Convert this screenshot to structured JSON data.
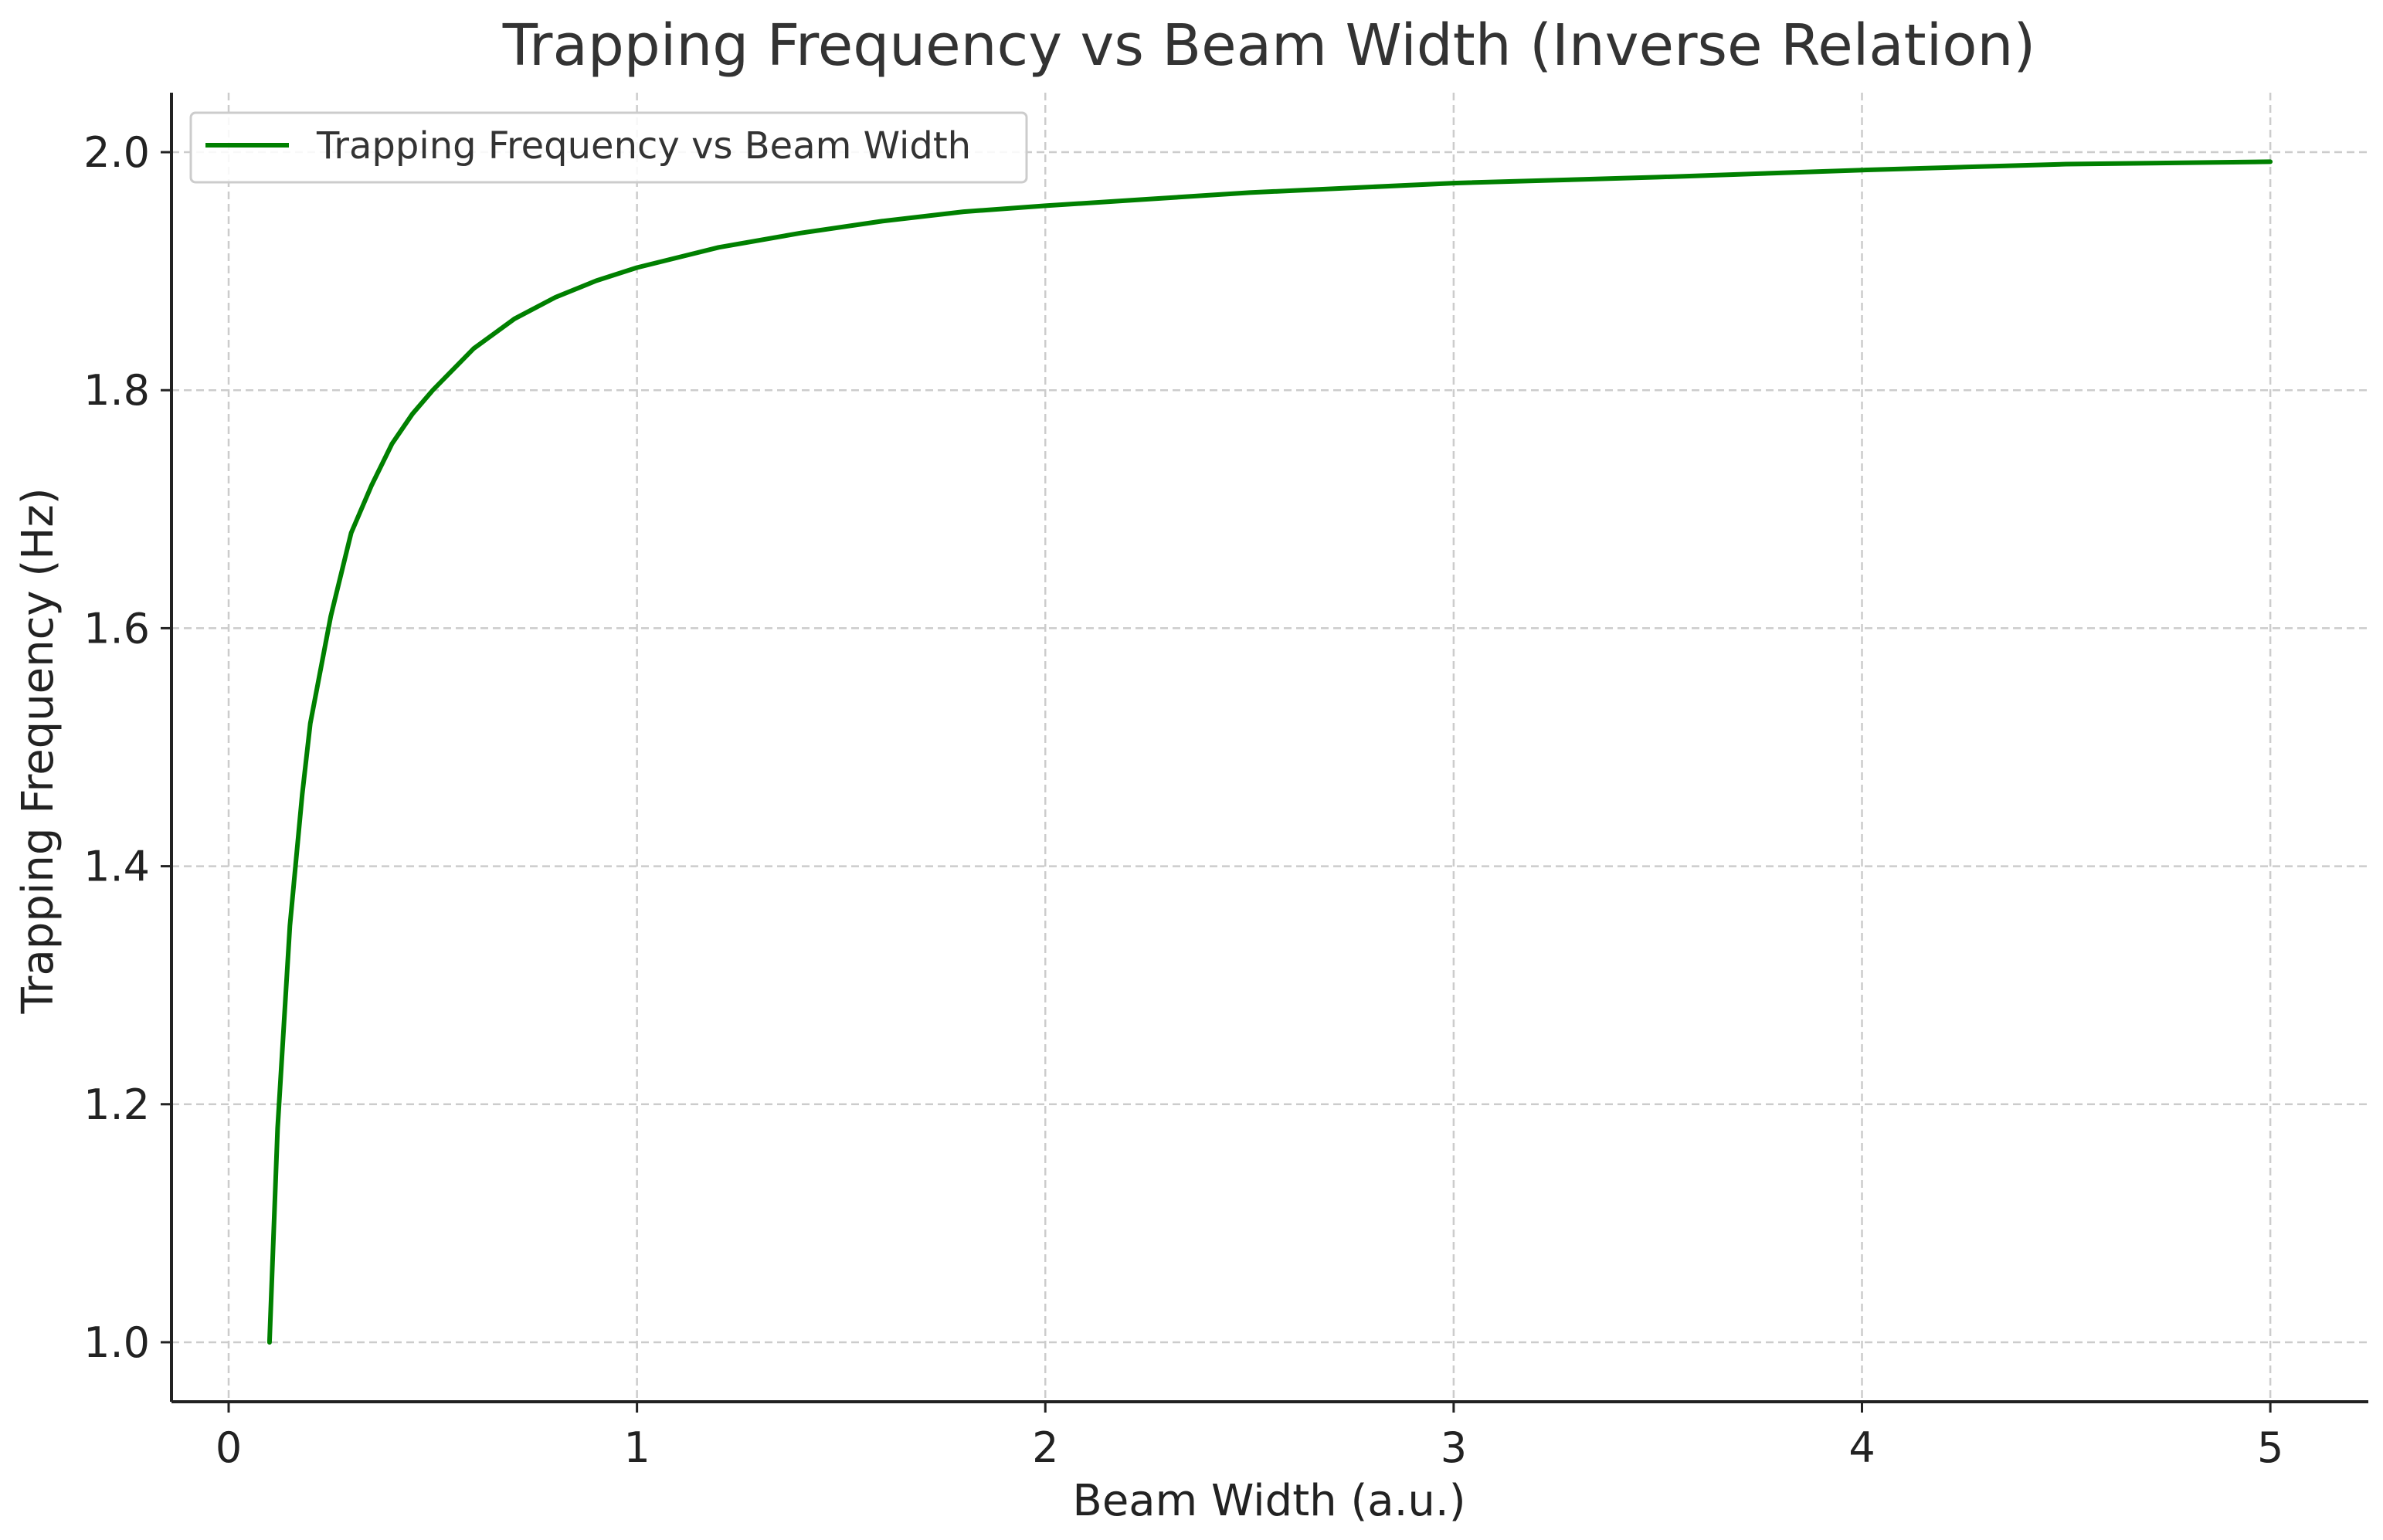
{
  "chart_data": {
    "type": "line",
    "title": "Trapping Frequency vs Beam Width (Inverse Relation)",
    "xlabel": "Beam Width (a.u.)",
    "ylabel": "Trapping Frequency (Hz)",
    "xlim": [
      -0.14,
      5.24
    ],
    "ylim": [
      0.95,
      2.05
    ],
    "xticks": [
      0,
      1,
      2,
      3,
      4,
      5
    ],
    "yticks": [
      1.0,
      1.2,
      1.4,
      1.6,
      1.8,
      2.0
    ],
    "xtick_labels": [
      "0",
      "1",
      "2",
      "3",
      "4",
      "5"
    ],
    "ytick_labels": [
      "1.0",
      "1.2",
      "1.4",
      "1.6",
      "1.8",
      "2.0"
    ],
    "grid": true,
    "legend_position": "top-left",
    "series": [
      {
        "name": "Trapping Frequency vs Beam Width",
        "color": "#008000",
        "x": [
          0.1,
          0.12,
          0.15,
          0.18,
          0.2,
          0.25,
          0.3,
          0.35,
          0.4,
          0.45,
          0.5,
          0.6,
          0.7,
          0.8,
          0.9,
          1.0,
          1.2,
          1.4,
          1.6,
          1.8,
          2.0,
          2.5,
          3.0,
          3.5,
          4.0,
          4.5,
          5.0
        ],
        "y": [
          1.0,
          1.18,
          1.35,
          1.46,
          1.52,
          1.61,
          1.68,
          1.72,
          1.755,
          1.78,
          1.8,
          1.835,
          1.86,
          1.878,
          1.892,
          1.903,
          1.92,
          1.932,
          1.942,
          1.95,
          1.955,
          1.966,
          1.974,
          1.979,
          1.985,
          1.99,
          1.992
        ]
      }
    ]
  }
}
